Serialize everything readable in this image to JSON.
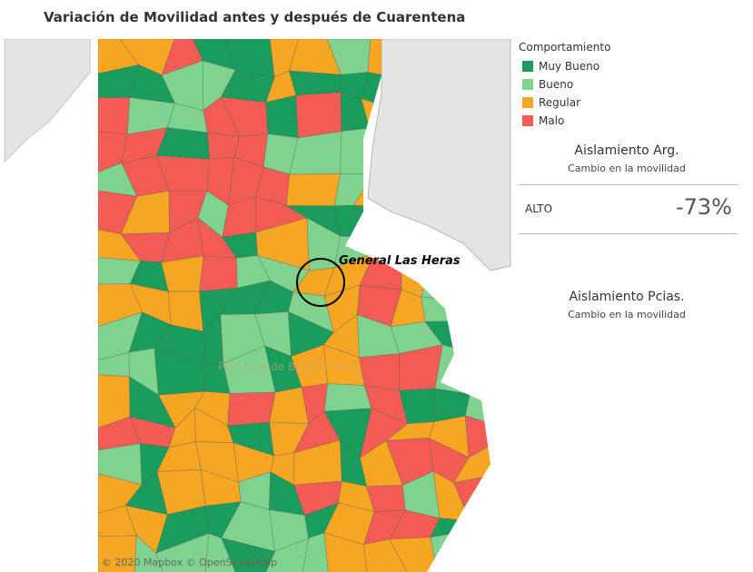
{
  "title": "Variación de Movilidad antes y después de Cuarentena",
  "map": {
    "annotation": "General Las Heras",
    "background_label": "Provincia de Buenos Aires",
    "attribution": "© 2020 Mapbox  © OpenStreetMap"
  },
  "legend": {
    "title": "Comportamiento",
    "items": [
      {
        "label": "Muy Bueno",
        "color": "#1a9c5c"
      },
      {
        "label": "Bueno",
        "color": "#7fd38e"
      },
      {
        "label": "Regular",
        "color": "#f5a623"
      },
      {
        "label": "Malo",
        "color": "#f25c54"
      }
    ]
  },
  "kpi_arg": {
    "title": "Aislamiento Arg.",
    "subtitle": "Cambio  en la movilidad",
    "row_label": "ALTO",
    "value": "-73%"
  },
  "kpi_pcias": {
    "title": "Aislamiento Pcias.",
    "subtitle": "Cambio  en la movilidad"
  }
}
